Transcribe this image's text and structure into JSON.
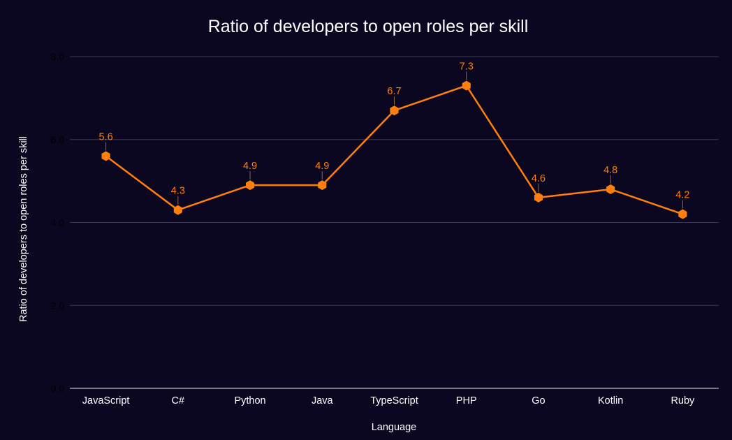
{
  "chart_data": {
    "type": "line",
    "title": "Ratio of developers to open roles per skill",
    "xlabel": "Language",
    "ylabel": "Ratio of developers to open roles per skill",
    "categories": [
      "JavaScript",
      "C#",
      "Python",
      "Java",
      "TypeScript",
      "PHP",
      "Go",
      "Kotlin",
      "Ruby"
    ],
    "series": [
      {
        "name": "Ratio",
        "values": [
          5.6,
          4.3,
          4.9,
          4.9,
          6.7,
          7.3,
          4.6,
          4.8,
          4.2
        ],
        "labels": [
          "5.6",
          "4.3",
          "4.9",
          "4.9",
          "6.7",
          "7.3",
          "4.6",
          "4.8",
          "4.2"
        ],
        "color": "#ff7f0e"
      }
    ],
    "ylim": [
      0,
      8
    ],
    "yticks": [
      0,
      2,
      4,
      6,
      8
    ],
    "ytick_labels": [
      "0.0",
      "2.0",
      "4.0",
      "6.0",
      "8.0"
    ],
    "grid": true,
    "background": "#0b0720"
  }
}
